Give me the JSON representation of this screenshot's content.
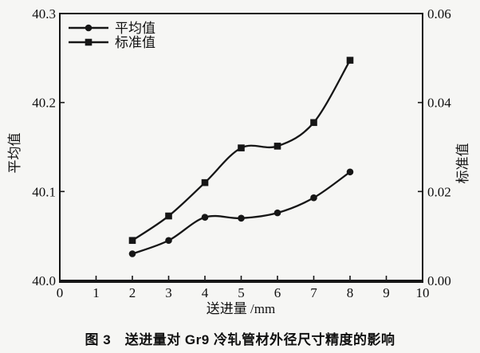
{
  "caption": "图 3　送进量对 Gr9 冷轧管材外径尺寸精度的影响",
  "chart_data": {
    "type": "line",
    "title": "",
    "xlabel": "送进量 /mm",
    "ylabel_left": "平均值",
    "ylabel_right": "标准值",
    "xlim": [
      0,
      10
    ],
    "x_ticks": [
      0,
      1,
      2,
      3,
      4,
      5,
      6,
      7,
      8,
      9,
      10
    ],
    "x_tick_labels": [
      "0",
      "1",
      "2",
      "3",
      "4",
      "5",
      "6",
      "7",
      "8",
      "9",
      "10"
    ],
    "ylim_left": [
      40.0,
      40.3
    ],
    "y_ticks_left": [
      40.0,
      40.1,
      40.2,
      40.3
    ],
    "y_tick_labels_left": [
      "40.0",
      "40.1",
      "40.2",
      "40.3"
    ],
    "ylim_right": [
      0.0,
      0.06
    ],
    "y_ticks_right": [
      0.0,
      0.02,
      0.04,
      0.06
    ],
    "y_tick_labels_right": [
      "0.00",
      "0.02",
      "0.04",
      "0.06"
    ],
    "grid": false,
    "legend_position": "top-left",
    "line_color": "#161616",
    "series": [
      {
        "name": "平均值",
        "axis": "left",
        "marker": "circle",
        "x": [
          2,
          3,
          4,
          5,
          6,
          7,
          8
        ],
        "values": [
          40.03,
          40.045,
          40.071,
          40.07,
          40.076,
          40.093,
          40.122
        ]
      },
      {
        "name": "标准值",
        "axis": "right",
        "marker": "square",
        "x": [
          2,
          3,
          4,
          5,
          6,
          7,
          8
        ],
        "values": [
          0.009,
          0.0145,
          0.022,
          0.0298,
          0.0302,
          0.0355,
          0.0495
        ]
      }
    ]
  }
}
